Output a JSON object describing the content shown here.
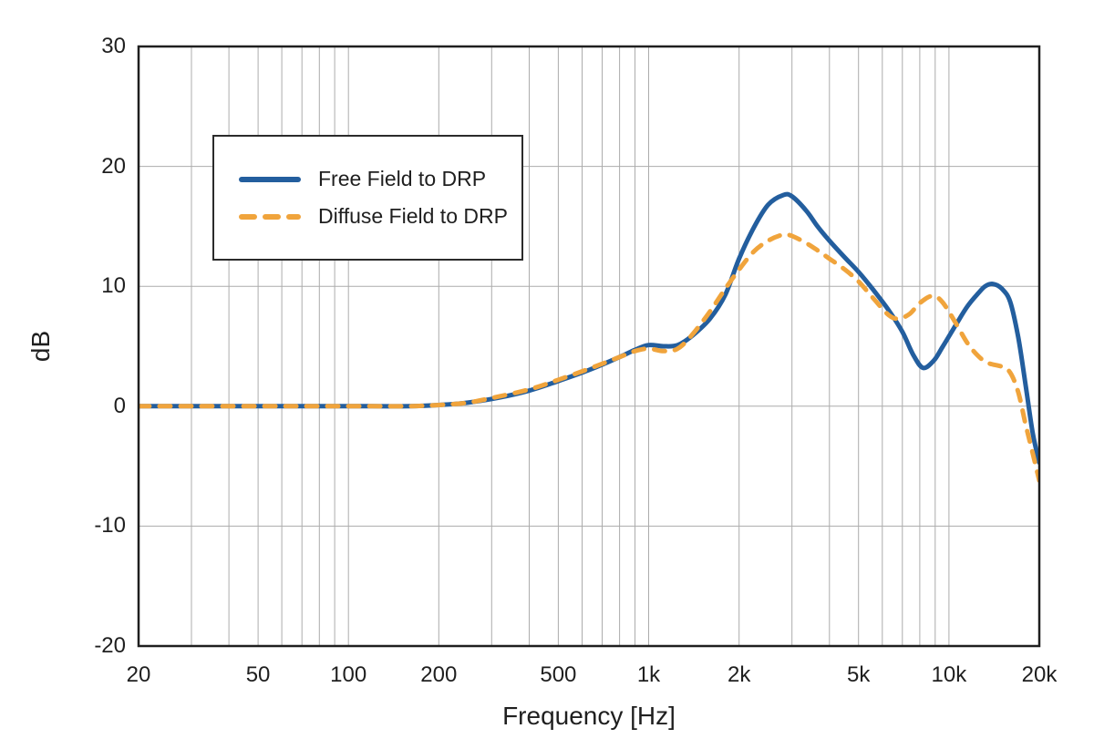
{
  "chart_data": {
    "type": "line",
    "title": "",
    "xlabel": "Frequency [Hz]",
    "ylabel": "dB",
    "x_scale": "log",
    "xlim": [
      20,
      20000
    ],
    "ylim": [
      -20,
      30
    ],
    "grid": true,
    "legend_position": "upper-left-inside",
    "x_ticks": [
      {
        "value": 20,
        "label": "20"
      },
      {
        "value": 50,
        "label": "50"
      },
      {
        "value": 100,
        "label": "100"
      },
      {
        "value": 200,
        "label": "200"
      },
      {
        "value": 500,
        "label": "500"
      },
      {
        "value": 1000,
        "label": "1k"
      },
      {
        "value": 2000,
        "label": "2k"
      },
      {
        "value": 5000,
        "label": "5k"
      },
      {
        "value": 10000,
        "label": "10k"
      },
      {
        "value": 20000,
        "label": "20k"
      }
    ],
    "y_ticks": [
      {
        "value": 30,
        "label": "30"
      },
      {
        "value": 20,
        "label": "20"
      },
      {
        "value": 10,
        "label": "10"
      },
      {
        "value": 0,
        "label": "0"
      },
      {
        "value": -10,
        "label": "-10"
      },
      {
        "value": -20,
        "label": "-20"
      }
    ],
    "x_gridlines": [
      30,
      40,
      50,
      60,
      70,
      80,
      90,
      100,
      200,
      300,
      400,
      500,
      600,
      700,
      800,
      900,
      1000,
      2000,
      3000,
      4000,
      5000,
      6000,
      7000,
      8000,
      9000,
      10000,
      20000
    ],
    "y_gridlines": [
      20,
      10,
      0,
      -10
    ],
    "colors": {
      "free_field": "#235E9E",
      "diffuse_field": "#F0A43C",
      "gridline": "#acacac",
      "frame": "#1f1f1f"
    },
    "series": [
      {
        "name": "Free Field to DRP",
        "color": "#235E9E",
        "style": "solid",
        "points": [
          [
            20,
            0
          ],
          [
            30,
            0
          ],
          [
            50,
            0
          ],
          [
            80,
            0
          ],
          [
            120,
            0
          ],
          [
            160,
            0
          ],
          [
            200,
            0.1
          ],
          [
            250,
            0.3
          ],
          [
            315,
            0.7
          ],
          [
            400,
            1.3
          ],
          [
            500,
            2.1
          ],
          [
            630,
            3.0
          ],
          [
            800,
            4.1
          ],
          [
            900,
            4.7
          ],
          [
            1000,
            5.1
          ],
          [
            1120,
            5.0
          ],
          [
            1250,
            5.1
          ],
          [
            1400,
            5.9
          ],
          [
            1600,
            7.3
          ],
          [
            1800,
            9.3
          ],
          [
            2000,
            12.3
          ],
          [
            2240,
            14.9
          ],
          [
            2500,
            16.8
          ],
          [
            2800,
            17.6
          ],
          [
            3000,
            17.5
          ],
          [
            3350,
            16.3
          ],
          [
            3650,
            15.0
          ],
          [
            4000,
            13.8
          ],
          [
            4500,
            12.4
          ],
          [
            5000,
            11.2
          ],
          [
            5600,
            9.7
          ],
          [
            6300,
            8.0
          ],
          [
            7000,
            6.2
          ],
          [
            7600,
            4.3
          ],
          [
            8200,
            3.2
          ],
          [
            8900,
            3.8
          ],
          [
            9500,
            4.9
          ],
          [
            10500,
            6.7
          ],
          [
            11500,
            8.3
          ],
          [
            12500,
            9.4
          ],
          [
            13200,
            10.0
          ],
          [
            14000,
            10.2
          ],
          [
            15000,
            9.8
          ],
          [
            16000,
            8.7
          ],
          [
            17000,
            5.8
          ],
          [
            18000,
            1.8
          ],
          [
            19000,
            -2.2
          ],
          [
            20000,
            -4.7
          ]
        ]
      },
      {
        "name": "Diffuse Field to DRP",
        "color": "#F0A43C",
        "style": "dashed",
        "points": [
          [
            20,
            0
          ],
          [
            30,
            0
          ],
          [
            50,
            0
          ],
          [
            80,
            0
          ],
          [
            120,
            0
          ],
          [
            160,
            0
          ],
          [
            200,
            0.1
          ],
          [
            250,
            0.3
          ],
          [
            315,
            0.8
          ],
          [
            400,
            1.4
          ],
          [
            500,
            2.2
          ],
          [
            630,
            3.1
          ],
          [
            800,
            4.1
          ],
          [
            900,
            4.6
          ],
          [
            1000,
            4.8
          ],
          [
            1120,
            4.6
          ],
          [
            1250,
            4.8
          ],
          [
            1400,
            6.0
          ],
          [
            1600,
            7.9
          ],
          [
            1800,
            9.8
          ],
          [
            2000,
            11.4
          ],
          [
            2240,
            12.9
          ],
          [
            2500,
            13.8
          ],
          [
            2800,
            14.3
          ],
          [
            3000,
            14.2
          ],
          [
            3350,
            13.6
          ],
          [
            3650,
            13.0
          ],
          [
            4000,
            12.3
          ],
          [
            4500,
            11.4
          ],
          [
            5000,
            10.4
          ],
          [
            5600,
            9.0
          ],
          [
            6300,
            7.6
          ],
          [
            6800,
            7.3
          ],
          [
            7400,
            7.7
          ],
          [
            8000,
            8.6
          ],
          [
            8800,
            9.2
          ],
          [
            9500,
            8.7
          ],
          [
            10500,
            7.0
          ],
          [
            11500,
            5.3
          ],
          [
            12500,
            4.2
          ],
          [
            13500,
            3.6
          ],
          [
            15000,
            3.3
          ],
          [
            16000,
            2.8
          ],
          [
            17000,
            1.2
          ],
          [
            18000,
            -1.5
          ],
          [
            19000,
            -3.9
          ],
          [
            20000,
            -6.2
          ]
        ]
      }
    ]
  }
}
